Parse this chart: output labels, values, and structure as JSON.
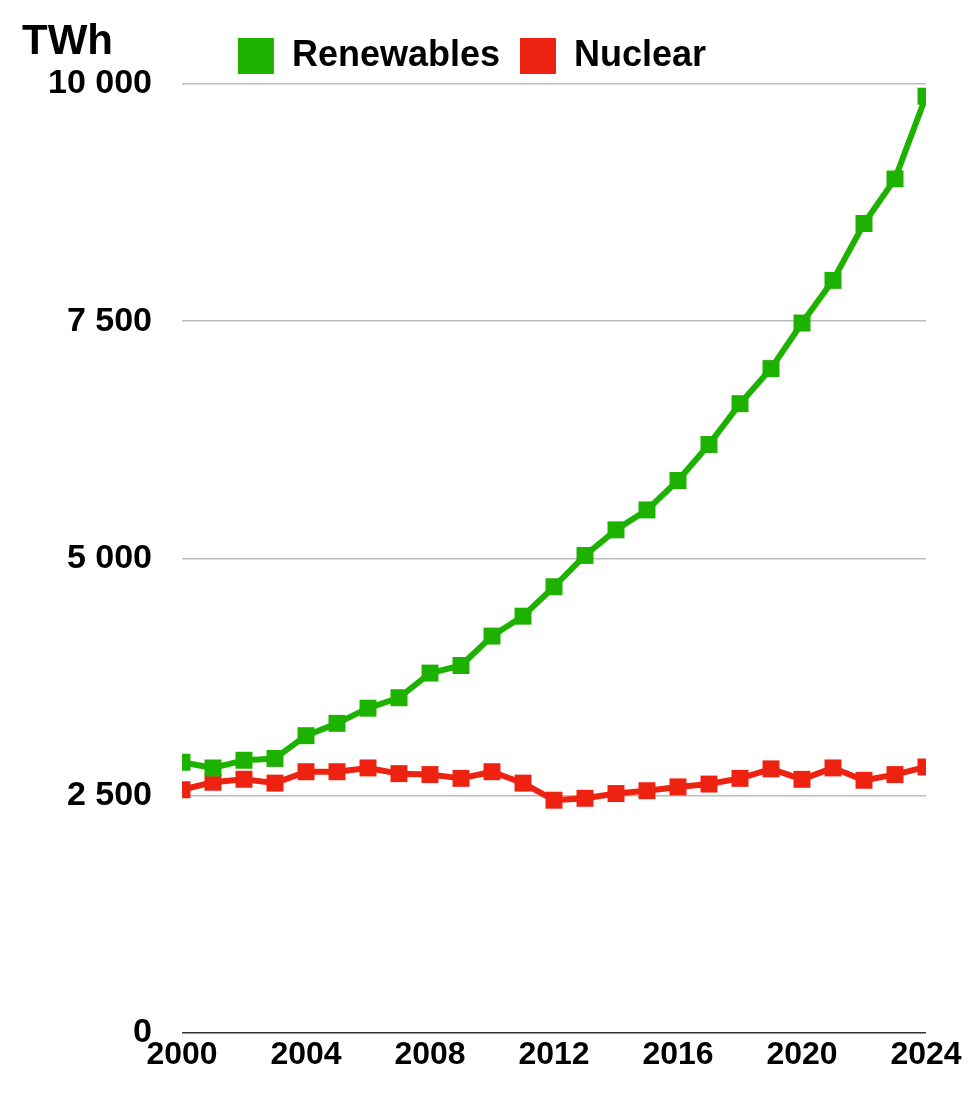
{
  "chart_data": {
    "type": "line",
    "ylabel": "TWh",
    "x": [
      2000,
      2001,
      2002,
      2003,
      2004,
      2005,
      2006,
      2007,
      2008,
      2009,
      2010,
      2011,
      2012,
      2013,
      2014,
      2015,
      2016,
      2017,
      2018,
      2019,
      2020,
      2021,
      2022,
      2023,
      2024
    ],
    "series": [
      {
        "name": "Renewables",
        "color": "#1db100",
        "values": [
          2850,
          2790,
          2870,
          2890,
          3130,
          3260,
          3420,
          3530,
          3790,
          3870,
          4180,
          4390,
          4700,
          5030,
          5300,
          5510,
          5820,
          6200,
          6630,
          7000,
          7480,
          7930,
          8530,
          9000,
          9870
        ]
      },
      {
        "name": "Nuclear",
        "color": "#ee2211",
        "values": [
          2560,
          2640,
          2670,
          2630,
          2750,
          2750,
          2790,
          2730,
          2720,
          2680,
          2750,
          2630,
          2450,
          2470,
          2520,
          2550,
          2590,
          2620,
          2680,
          2780,
          2670,
          2790,
          2660,
          2720,
          2800
        ]
      }
    ],
    "xlim": [
      2000,
      2024
    ],
    "xticks": [
      2000,
      2004,
      2008,
      2012,
      2016,
      2020,
      2024
    ],
    "ylim": [
      0,
      10000
    ],
    "yticks": [
      {
        "value": 0,
        "label": "0"
      },
      {
        "value": 2500,
        "label": "2 500"
      },
      {
        "value": 5000,
        "label": "5 000"
      },
      {
        "value": 7500,
        "label": "7 500"
      },
      {
        "value": 10000,
        "label": "10 000"
      }
    ],
    "grid": "y",
    "legend": "top",
    "marker": "square",
    "line_style": "solid"
  }
}
